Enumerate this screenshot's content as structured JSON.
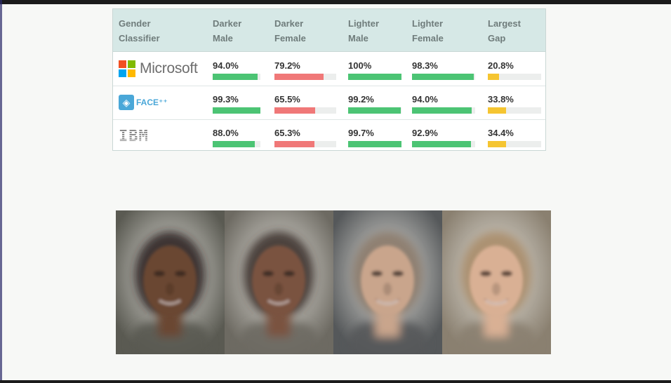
{
  "table": {
    "headers": [
      "Gender\nClassifier",
      "Darker\nMale",
      "Darker\nFemale",
      "Lighter\nMale",
      "Lighter\nFemale",
      "Largest\nGap"
    ],
    "rows": [
      {
        "logo_text": "Microsoft",
        "logo_icon": "microsoft-logo-icon",
        "values": [
          "94.0%",
          "79.2%",
          "100%",
          "98.3%",
          "20.8%"
        ],
        "fractions": [
          0.94,
          0.792,
          1.0,
          0.983,
          0.208
        ]
      },
      {
        "logo_text": "FACE⁺⁺",
        "logo_icon": "faceplusplus-logo-icon",
        "values": [
          "99.3%",
          "65.5%",
          "99.2%",
          "94.0%",
          "33.8%"
        ],
        "fractions": [
          0.993,
          0.655,
          0.992,
          0.94,
          0.338
        ]
      },
      {
        "logo_text": "IBM",
        "logo_icon": "ibm-logo-icon",
        "values": [
          "88.0%",
          "65.3%",
          "99.7%",
          "92.9%",
          "34.4%"
        ],
        "fractions": [
          0.88,
          0.653,
          0.997,
          0.929,
          0.344
        ]
      }
    ],
    "bar_colors": [
      "#4cc474",
      "#f07878",
      "#4cc474",
      "#4cc474",
      "#f5c531"
    ],
    "microsoft_colors": [
      "#f25022",
      "#7fba00",
      "#00a4ef",
      "#ffb900"
    ]
  },
  "faces": [
    {
      "icon": "darker-male-face-image",
      "skin": "#6b4733",
      "hair": "#2a2220",
      "bg": "#5a5a52"
    },
    {
      "icon": "darker-female-face-image",
      "skin": "#7a5340",
      "hair": "#3a2d28",
      "bg": "#6d6a62"
    },
    {
      "icon": "lighter-male-face-image",
      "skin": "#c9a58c",
      "hair": "#8a7868",
      "bg": "#55585a"
    },
    {
      "icon": "lighter-female-face-image",
      "skin": "#d9b094",
      "hair": "#a88a66",
      "bg": "#8a8070"
    }
  ]
}
